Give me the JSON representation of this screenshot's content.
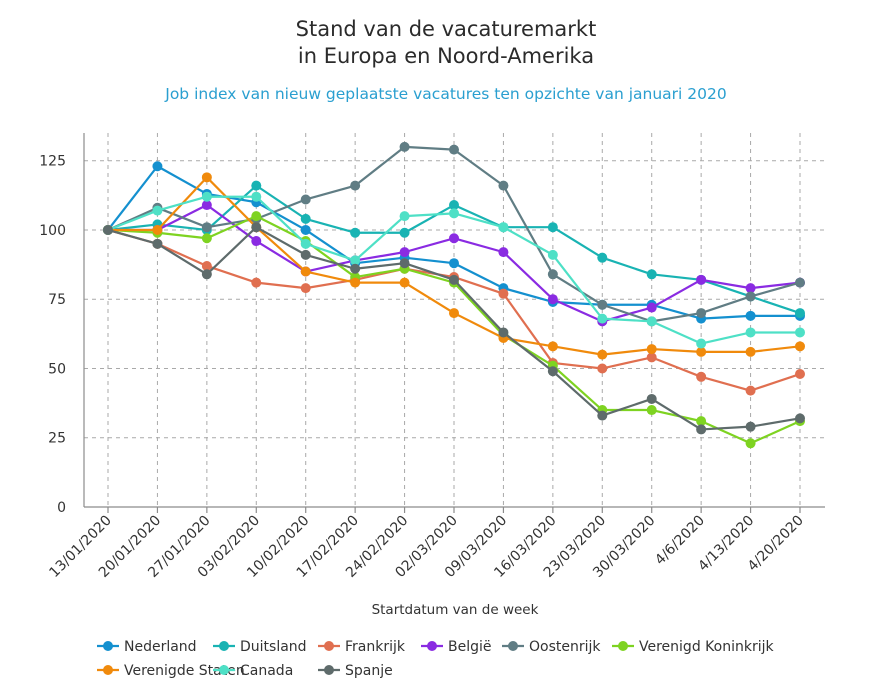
{
  "chart_data": {
    "type": "line",
    "title_lines": [
      "Stand van de vacaturemarkt",
      "in Europa en Noord-Amerika"
    ],
    "subtitle": "Job index van nieuw geplaatste vacatures ten opzichte van januari 2020",
    "xlabel": "Startdatum van de week",
    "ylabel": "",
    "ylim": [
      0,
      135
    ],
    "yticks": [
      0,
      25,
      50,
      75,
      100,
      125
    ],
    "grid": true,
    "legend_position": "bottom",
    "categories": [
      "13/01/2020",
      "20/01/2020",
      "27/01/2020",
      "03/02/2020",
      "10/02/2020",
      "17/02/2020",
      "24/02/2020",
      "02/03/2020",
      "09/03/2020",
      "16/03/2020",
      "23/03/2020",
      "30/03/2020",
      "4/6/2020",
      "4/13/2020",
      "4/20/2020"
    ],
    "series": [
      {
        "name": "Nederland",
        "color": "#1490cf",
        "values": [
          100,
          123,
          113,
          110,
          100,
          88,
          90,
          88,
          79,
          74,
          73,
          73,
          68,
          69,
          69
        ]
      },
      {
        "name": "Duitsland",
        "color": "#19b3b3",
        "values": [
          100,
          102,
          100,
          116,
          104,
          99,
          99,
          109,
          101,
          101,
          90,
          84,
          82,
          76,
          70
        ]
      },
      {
        "name": "Frankrijk",
        "color": "#e06f50",
        "values": [
          100,
          95,
          87,
          81,
          79,
          82,
          86,
          83,
          77,
          52,
          50,
          54,
          47,
          42,
          48
        ]
      },
      {
        "name": "België",
        "color": "#8a2be2",
        "values": [
          100,
          100,
          109,
          96,
          85,
          89,
          92,
          97,
          92,
          75,
          67,
          72,
          82,
          79,
          81
        ]
      },
      {
        "name": "Oostenrijk",
        "color": "#607d84",
        "values": [
          100,
          108,
          101,
          104,
          111,
          116,
          130,
          129,
          116,
          84,
          73,
          67,
          70,
          76,
          81
        ]
      },
      {
        "name": "Verenigd Koninkrijk",
        "color": "#7ed321",
        "values": [
          100,
          99,
          97,
          105,
          96,
          83,
          86,
          81,
          62,
          51,
          35,
          35,
          31,
          23,
          31
        ]
      },
      {
        "name": "Verenigde Staten",
        "color": "#f08a0c",
        "values": [
          100,
          100,
          119,
          101,
          85,
          81,
          81,
          70,
          61,
          58,
          55,
          57,
          56,
          56,
          58
        ]
      },
      {
        "name": "Canada",
        "color": "#4ee0c6",
        "values": [
          100,
          107,
          112,
          112,
          95,
          89,
          105,
          106,
          101,
          91,
          68,
          67,
          59,
          63,
          63
        ]
      },
      {
        "name": "Spanje",
        "color": "#5e6b6b",
        "values": [
          100,
          95,
          84,
          101,
          91,
          86,
          88,
          82,
          63,
          49,
          33,
          39,
          28,
          29,
          32
        ]
      }
    ]
  }
}
